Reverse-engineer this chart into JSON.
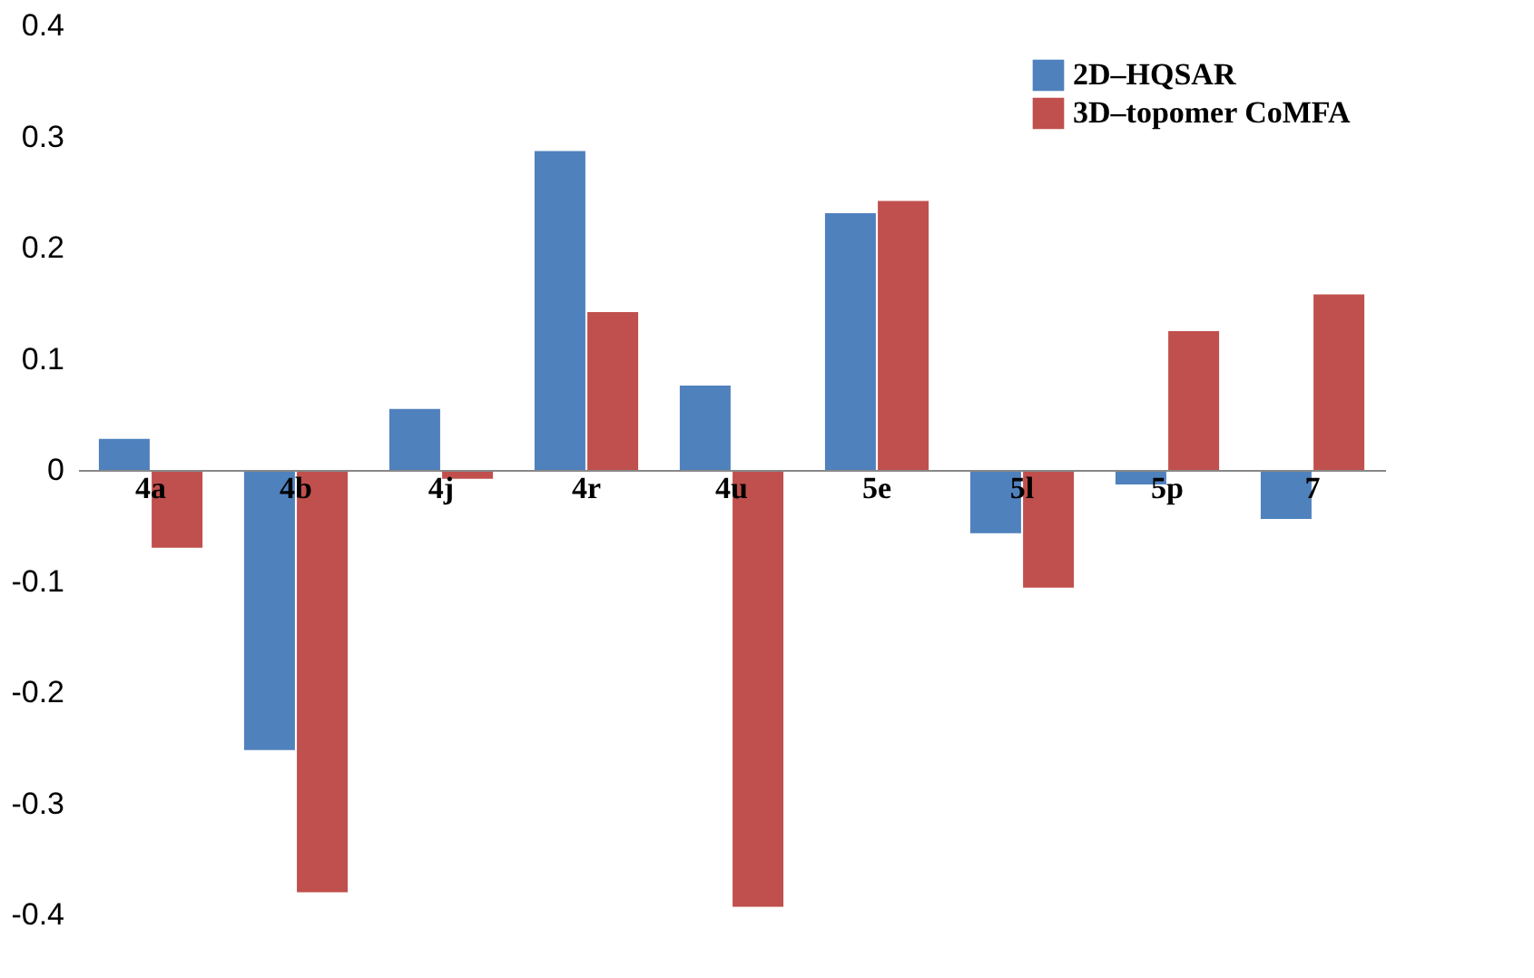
{
  "chart_data": {
    "type": "bar",
    "categories": [
      "4a",
      "4b",
      "4j",
      "4r",
      "4u",
      "5e",
      "5l",
      "5p",
      "7"
    ],
    "series": [
      {
        "name": "2D–HQSAR",
        "color": "#4f81bd",
        "values": [
          0.028,
          -0.252,
          0.055,
          0.287,
          0.076,
          0.231,
          -0.057,
          -0.013,
          -0.044
        ]
      },
      {
        "name": "3D–topomer CoMFA",
        "color": "#c0504d",
        "values": [
          -0.07,
          -0.38,
          -0.008,
          0.142,
          -0.393,
          0.242,
          -0.106,
          0.125,
          0.158
        ]
      }
    ],
    "ylim": [
      -0.4,
      0.4
    ],
    "yticks": [
      -0.4,
      -0.3,
      -0.2,
      -0.1,
      {
        "value": 0,
        "label": "0"
      },
      0.1,
      0.2,
      0.3,
      0.4
    ],
    "grid": false,
    "legend": "top right"
  }
}
